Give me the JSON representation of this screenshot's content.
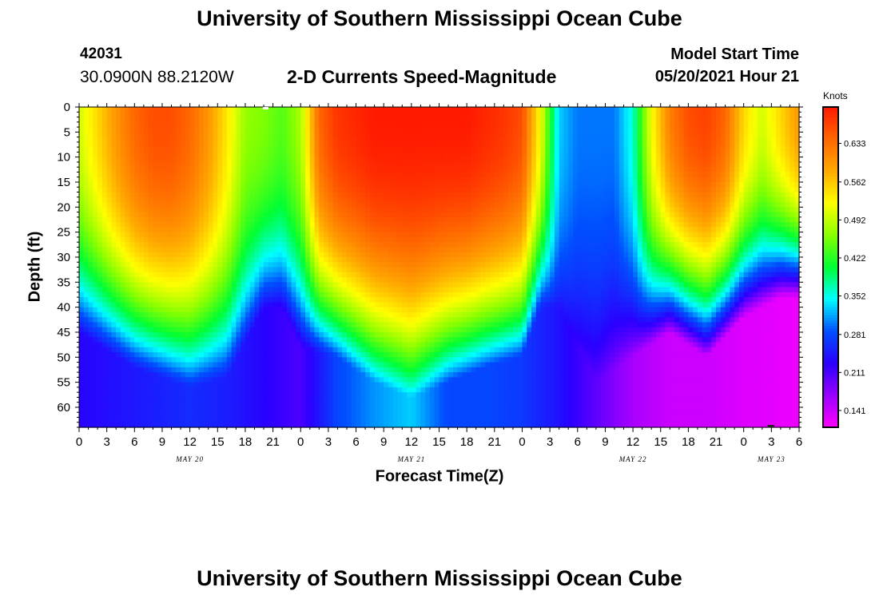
{
  "page": {
    "header_title": "University of Southern Mississippi Ocean Cube",
    "footer_title": "University of Southern Mississippi Ocean Cube",
    "station_id": "42031",
    "coordinates": "30.0900N  88.2120W",
    "plot_title": "2-D Currents Speed-Magnitude",
    "model_start_label": "Model Start Time",
    "model_start_value": "05/20/2021 Hour 21"
  },
  "chart_data": {
    "type": "heatmap",
    "title": "2-D Currents Speed-Magnitude",
    "xlabel": "Forecast Time(Z)",
    "ylabel": "Depth (ft)",
    "colorbar_label": "Knots",
    "x_range_hours": [
      0,
      78
    ],
    "y_range_ft": [
      0,
      64
    ],
    "x_tick_labels": [
      "0",
      "3",
      "6",
      "9",
      "12",
      "15",
      "18",
      "21",
      "0",
      "3",
      "6",
      "9",
      "12",
      "15",
      "18",
      "21",
      "0",
      "3",
      "6",
      "9",
      "12",
      "15",
      "18",
      "21",
      "0",
      "3",
      "6"
    ],
    "y_tick_labels": [
      "0",
      "5",
      "10",
      "15",
      "20",
      "25",
      "30",
      "35",
      "40",
      "45",
      "50",
      "55",
      "60"
    ],
    "date_labels": [
      {
        "text": "MAY 20",
        "hour": 12
      },
      {
        "text": "MAY 21",
        "hour": 36
      },
      {
        "text": "MAY 22",
        "hour": 60
      },
      {
        "text": "MAY 23",
        "hour": 75
      }
    ],
    "colorbar_ticks": [
      "0.633",
      "0.562",
      "0.492",
      "0.422",
      "0.352",
      "0.281",
      "0.211",
      "0.141"
    ],
    "color_range_knots": [
      0.11,
      0.7
    ],
    "palette": [
      "#ff00ff",
      "#9900ff",
      "#2a00ff",
      "#0050ff",
      "#00ffff",
      "#00ff33",
      "#88ff00",
      "#ffff00",
      "#ffaa00",
      "#ff6600",
      "#ff1a00"
    ],
    "surface_speed_knots": [
      [
        0,
        0.5
      ],
      [
        2,
        0.55
      ],
      [
        4,
        0.6
      ],
      [
        6,
        0.64
      ],
      [
        8,
        0.66
      ],
      [
        10,
        0.66
      ],
      [
        12,
        0.64
      ],
      [
        14,
        0.6
      ],
      [
        16,
        0.54
      ],
      [
        18,
        0.47
      ],
      [
        20,
        0.46
      ],
      [
        22,
        0.44
      ],
      [
        24,
        0.48
      ],
      [
        26,
        0.64
      ],
      [
        28,
        0.68
      ],
      [
        30,
        0.69
      ],
      [
        32,
        0.7
      ],
      [
        34,
        0.7
      ],
      [
        36,
        0.7
      ],
      [
        38,
        0.7
      ],
      [
        40,
        0.7
      ],
      [
        42,
        0.7
      ],
      [
        44,
        0.69
      ],
      [
        46,
        0.68
      ],
      [
        48,
        0.66
      ],
      [
        50,
        0.52
      ],
      [
        51,
        0.42
      ],
      [
        52,
        0.33
      ],
      [
        54,
        0.3
      ],
      [
        56,
        0.3
      ],
      [
        58,
        0.3
      ],
      [
        60,
        0.36
      ],
      [
        62,
        0.52
      ],
      [
        64,
        0.62
      ],
      [
        66,
        0.66
      ],
      [
        68,
        0.67
      ],
      [
        70,
        0.64
      ],
      [
        72,
        0.55
      ],
      [
        74,
        0.5
      ],
      [
        76,
        0.55
      ],
      [
        78,
        0.6
      ]
    ],
    "bottom_speed_knots": [
      [
        0,
        0.23
      ],
      [
        4,
        0.24
      ],
      [
        8,
        0.25
      ],
      [
        12,
        0.26
      ],
      [
        16,
        0.25
      ],
      [
        20,
        0.23
      ],
      [
        24,
        0.21
      ],
      [
        28,
        0.28
      ],
      [
        32,
        0.31
      ],
      [
        36,
        0.33
      ],
      [
        40,
        0.28
      ],
      [
        44,
        0.28
      ],
      [
        48,
        0.27
      ],
      [
        52,
        0.24
      ],
      [
        56,
        0.2
      ],
      [
        60,
        0.16
      ],
      [
        64,
        0.14
      ],
      [
        68,
        0.14
      ],
      [
        72,
        0.13
      ],
      [
        78,
        0.12
      ]
    ],
    "decay_depth_ft": [
      [
        0,
        45
      ],
      [
        6,
        52
      ],
      [
        12,
        56
      ],
      [
        16,
        54
      ],
      [
        20,
        40
      ],
      [
        22,
        40
      ],
      [
        24,
        48
      ],
      [
        28,
        50
      ],
      [
        32,
        55
      ],
      [
        36,
        58
      ],
      [
        40,
        55
      ],
      [
        44,
        52
      ],
      [
        48,
        50
      ],
      [
        50,
        40
      ],
      [
        52,
        40
      ],
      [
        56,
        55
      ],
      [
        60,
        50
      ],
      [
        64,
        45
      ],
      [
        68,
        50
      ],
      [
        72,
        42
      ],
      [
        76,
        38
      ],
      [
        78,
        38
      ]
    ]
  }
}
